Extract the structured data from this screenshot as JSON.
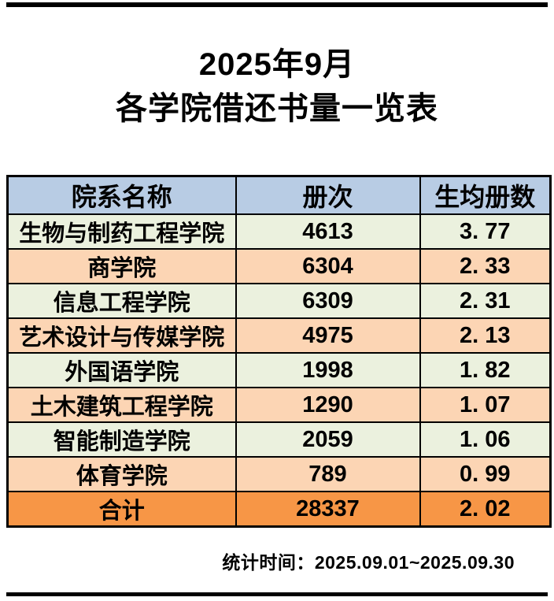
{
  "title": {
    "line1": "2025年9月",
    "line2": "各学院借还书量一览表"
  },
  "table": {
    "headers": [
      "院系名称",
      "册次",
      "生均册数"
    ],
    "rows": [
      {
        "name": "生物与制药工程学院",
        "count": "4613",
        "avg": "3. 77"
      },
      {
        "name": "商学院",
        "count": "6304",
        "avg": "2. 33"
      },
      {
        "name": "信息工程学院",
        "count": "6309",
        "avg": "2. 31"
      },
      {
        "name": "艺术设计与传媒学院",
        "count": "4975",
        "avg": "2. 13"
      },
      {
        "name": "外国语学院",
        "count": "1998",
        "avg": "1. 82"
      },
      {
        "name": "土木建筑工程学院",
        "count": "1290",
        "avg": "1. 07"
      },
      {
        "name": "智能制造学院",
        "count": "2059",
        "avg": "1. 06"
      },
      {
        "name": "体育学院",
        "count": "789",
        "avg": "0. 99"
      }
    ],
    "total": {
      "name": "合计",
      "count": "28337",
      "avg": "2. 02"
    }
  },
  "footer": {
    "stat_time": "统计时间：2025.09.01~2025.09.30"
  },
  "colors": {
    "header-bg": "#B8CCE4",
    "row-green": "#EBF1DE",
    "row-peach": "#FCD5B4",
    "total-bg": "#F79646",
    "border": "#000000"
  }
}
